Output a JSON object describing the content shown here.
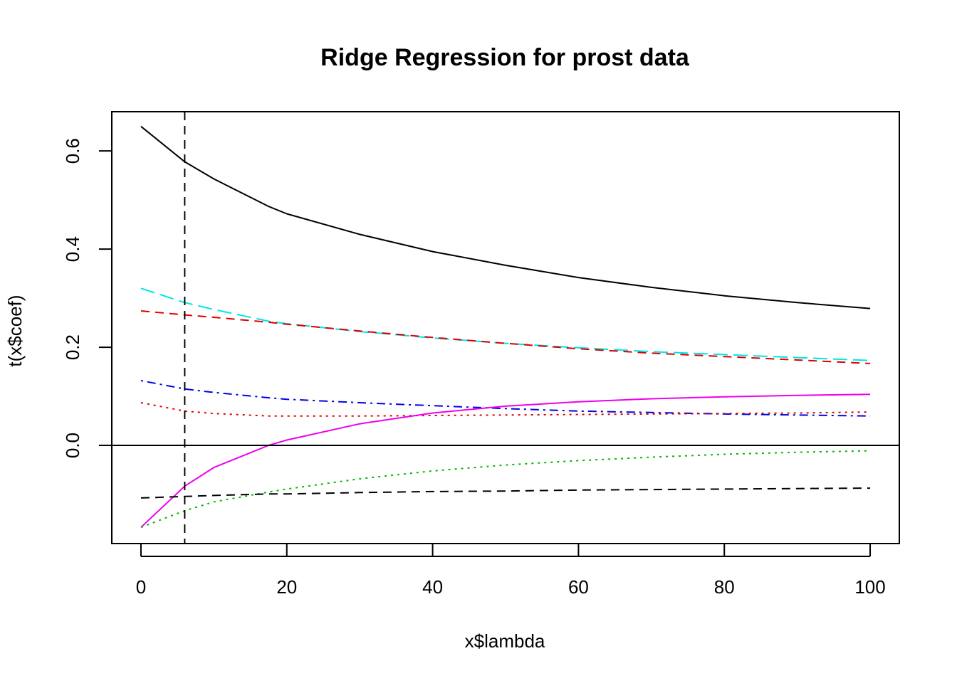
{
  "chart_data": {
    "type": "line",
    "title": "Ridge Regression for prost data",
    "xlabel": "x$lambda",
    "ylabel": "t(x$coef)",
    "xlim": [
      -4,
      104
    ],
    "ylim": [
      -0.2,
      0.68
    ],
    "x_ticks": [
      {
        "value": 0,
        "label": "0"
      },
      {
        "value": 20,
        "label": "20"
      },
      {
        "value": 40,
        "label": "40"
      },
      {
        "value": 60,
        "label": "60"
      },
      {
        "value": 80,
        "label": "80"
      },
      {
        "value": 100,
        "label": "100"
      }
    ],
    "y_ticks": [
      {
        "value": 0.0,
        "label": "0.0"
      },
      {
        "value": 0.2,
        "label": "0.2"
      },
      {
        "value": 0.4,
        "label": "0.4"
      },
      {
        "value": 0.6,
        "label": "0.6"
      }
    ],
    "x": [
      0,
      6,
      10,
      17.5,
      20,
      30,
      40,
      50,
      60,
      70,
      80,
      90,
      100
    ],
    "series": [
      {
        "color": "#000000",
        "dash": "solid",
        "values": [
          0.65,
          0.578,
          0.543,
          0.487,
          0.472,
          0.43,
          0.395,
          0.367,
          0.342,
          0.322,
          0.305,
          0.291,
          0.279
        ]
      },
      {
        "color": "#00e5e5",
        "dash": "longdash",
        "values": [
          0.32,
          0.291,
          0.277,
          0.253,
          0.248,
          0.232,
          0.219,
          0.208,
          0.199,
          0.191,
          0.185,
          0.179,
          0.173
        ]
      },
      {
        "color": "#dd0000",
        "dash": "dashed",
        "values": [
          0.274,
          0.266,
          0.261,
          0.251,
          0.247,
          0.233,
          0.22,
          0.208,
          0.197,
          0.188,
          0.181,
          0.174,
          0.167
        ]
      },
      {
        "color": "#0000ee",
        "dash": "dotdash",
        "values": [
          0.132,
          0.115,
          0.108,
          0.097,
          0.094,
          0.087,
          0.081,
          0.075,
          0.07,
          0.067,
          0.064,
          0.062,
          0.06
        ]
      },
      {
        "color": "#dd0000",
        "dash": "dotted",
        "values": [
          0.087,
          0.07,
          0.065,
          0.06,
          0.06,
          0.06,
          0.061,
          0.062,
          0.063,
          0.064,
          0.065,
          0.066,
          0.068
        ]
      },
      {
        "color": "#ee00ee",
        "dash": "solid",
        "values": [
          -0.167,
          -0.083,
          -0.045,
          0.0,
          0.011,
          0.044,
          0.066,
          0.08,
          0.089,
          0.095,
          0.099,
          0.102,
          0.104
        ]
      },
      {
        "color": "#00bb00",
        "dash": "dotted",
        "values": [
          -0.167,
          -0.133,
          -0.115,
          -0.095,
          -0.089,
          -0.068,
          -0.052,
          -0.04,
          -0.031,
          -0.024,
          -0.018,
          -0.014,
          -0.011
        ]
      },
      {
        "color": "#000000",
        "dash": "dashed",
        "values": [
          -0.107,
          -0.104,
          -0.102,
          -0.099,
          -0.099,
          -0.096,
          -0.094,
          -0.093,
          -0.091,
          -0.09,
          -0.089,
          -0.088,
          -0.087
        ]
      }
    ],
    "reference_lines": [
      {
        "orientation": "horizontal",
        "value": 0.0,
        "style": "solid",
        "color": "#000000"
      },
      {
        "orientation": "vertical",
        "value": 6,
        "style": "dashed",
        "color": "#000000"
      }
    ],
    "grid": false,
    "legend": "none"
  }
}
